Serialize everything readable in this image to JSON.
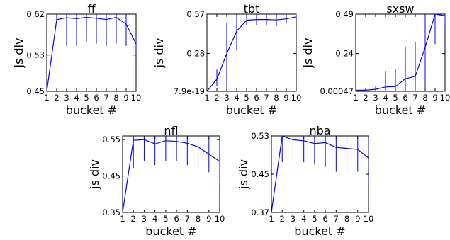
{
  "chart_data": [
    {
      "type": "line",
      "title": "ff",
      "xlabel": "bucket #",
      "ylabel": "js div",
      "x": [
        1,
        2,
        3,
        4,
        5,
        6,
        7,
        8,
        9,
        10
      ],
      "ylim": [
        0.45,
        0.62
      ],
      "yticks": [
        "0.45",
        "0.53",
        "0.62"
      ],
      "ytick_values": [
        0.45,
        0.53,
        0.62
      ],
      "xticks": [
        "1",
        "2",
        "3",
        "4",
        "5",
        "6",
        "7",
        "8",
        "9",
        "10"
      ],
      "series": [
        {
          "color": "#0000ff",
          "values": [
            0.45,
            0.608,
            0.612,
            0.61,
            0.613,
            0.611,
            0.608,
            0.613,
            0.598,
            0.555
          ],
          "err_low": [
            0.45,
            0.6,
            0.55,
            0.55,
            0.56,
            0.555,
            0.55,
            0.555,
            0.55,
            0.54
          ],
          "err_high": [
            0.45,
            0.62,
            0.62,
            0.62,
            0.62,
            0.62,
            0.62,
            0.62,
            0.62,
            0.57
          ]
        }
      ]
    },
    {
      "type": "line",
      "title": "tbt",
      "xlabel": "bucket #",
      "ylabel": "js div",
      "x": [
        1,
        2,
        3,
        4,
        5,
        6,
        7,
        8,
        9,
        10
      ],
      "ylim": [
        0,
        0.57
      ],
      "yticks": [
        "7.9e-19",
        "0.28",
        "0.57"
      ],
      "ytick_values": [
        0,
        0.28,
        0.57
      ],
      "xticks": [
        "1",
        "2",
        "3",
        "4",
        "5",
        "6",
        "7",
        "8",
        "9",
        "10"
      ],
      "series": [
        {
          "color": "#0000ff",
          "values": [
            0.0,
            0.09,
            0.28,
            0.445,
            0.525,
            0.53,
            0.53,
            0.527,
            0.535,
            0.55
          ],
          "err_low": [
            0.0,
            0.04,
            0.02,
            0.3,
            0.49,
            0.49,
            0.49,
            0.48,
            0.5,
            0.52
          ],
          "err_high": [
            0.0,
            0.16,
            0.51,
            0.57,
            0.57,
            0.57,
            0.57,
            0.57,
            0.57,
            0.57
          ]
        }
      ]
    },
    {
      "type": "line",
      "title": "sxsw",
      "xlabel": "bucket #",
      "ylabel": "js div",
      "x": [
        1,
        2,
        3,
        4,
        5,
        6,
        7,
        8,
        9,
        10
      ],
      "ylim": [
        0,
        0.49
      ],
      "yticks": [
        "0.00047",
        "0.24",
        "0.49"
      ],
      "ytick_values": [
        0.00047,
        0.24,
        0.49
      ],
      "xticks": [
        "1",
        "2",
        "3",
        "4",
        "5",
        "6",
        "7",
        "8",
        "9",
        "10"
      ],
      "series": [
        {
          "color": "#0000ff",
          "values": [
            0.007,
            0.007,
            0.013,
            0.028,
            0.03,
            0.08,
            0.095,
            0.28,
            0.49,
            0.48
          ],
          "err_low": [
            0.0,
            0.0,
            0.0,
            0.0,
            0.0,
            0.0,
            0.0,
            0.02,
            0.3,
            0.42
          ],
          "err_high": [
            0.01,
            0.01,
            0.03,
            0.13,
            0.14,
            0.28,
            0.31,
            0.49,
            0.49,
            0.49
          ]
        }
      ]
    },
    {
      "type": "line",
      "title": "nfl",
      "xlabel": "bucket #",
      "ylabel": "js div",
      "x": [
        1,
        2,
        3,
        4,
        5,
        6,
        7,
        8,
        9,
        10
      ],
      "ylim": [
        0.35,
        0.56
      ],
      "yticks": [
        "0.35",
        "0.45",
        "0.55"
      ],
      "ytick_values": [
        0.35,
        0.45,
        0.55
      ],
      "xticks": [
        "1",
        "2",
        "3",
        "4",
        "5",
        "6",
        "7",
        "8",
        "9",
        "10"
      ],
      "series": [
        {
          "color": "#0000ff",
          "values": [
            0.35,
            0.548,
            0.55,
            0.538,
            0.547,
            0.545,
            0.54,
            0.53,
            0.51,
            0.49
          ],
          "err_low": [
            0.35,
            0.47,
            0.49,
            0.48,
            0.49,
            0.49,
            0.48,
            0.47,
            0.46,
            0.43
          ],
          "err_high": [
            0.35,
            0.56,
            0.56,
            0.56,
            0.56,
            0.56,
            0.56,
            0.56,
            0.56,
            0.55
          ]
        }
      ]
    },
    {
      "type": "line",
      "title": "nba",
      "xlabel": "bucket #",
      "ylabel": "js div",
      "x": [
        1,
        2,
        3,
        4,
        5,
        6,
        7,
        8,
        9,
        10
      ],
      "ylim": [
        0.37,
        0.53
      ],
      "yticks": [
        "0.37",
        "0.45",
        "0.53"
      ],
      "ytick_values": [
        0.37,
        0.45,
        0.53
      ],
      "xticks": [
        "1",
        "2",
        "3",
        "4",
        "5",
        "6",
        "7",
        "8",
        "9",
        "10"
      ],
      "series": [
        {
          "color": "#0000ff",
          "values": [
            0.37,
            0.53,
            0.522,
            0.52,
            0.514,
            0.516,
            0.506,
            0.504,
            0.502,
            0.484
          ],
          "err_low": [
            0.37,
            0.475,
            0.48,
            0.475,
            0.47,
            0.465,
            0.455,
            0.455,
            0.455,
            0.43
          ],
          "err_high": [
            0.37,
            0.53,
            0.53,
            0.53,
            0.53,
            0.53,
            0.53,
            0.53,
            0.53,
            0.53
          ]
        }
      ]
    }
  ]
}
